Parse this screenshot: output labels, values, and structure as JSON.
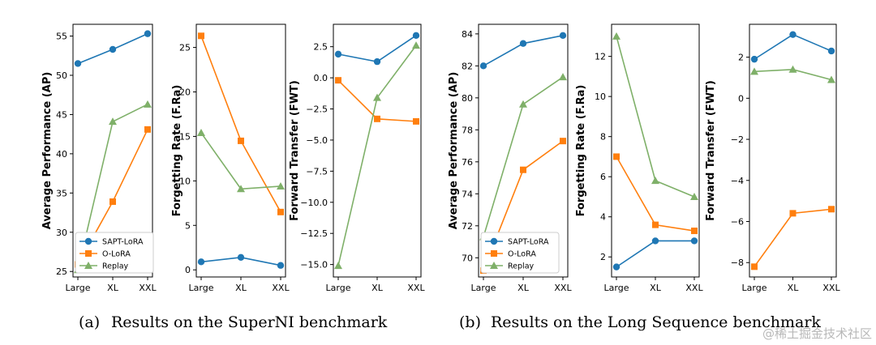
{
  "figure": {
    "captions": [
      {
        "label": "(a)",
        "text": "Results on the SuperNI benchmark"
      },
      {
        "label": "(b)",
        "text": "Results on the Long Sequence benchmark"
      }
    ],
    "watermark": "@稀土掘金技术社区"
  },
  "colors": {
    "SAPT-LoRA": "#1f77b4",
    "O-LoRA": "#ff7f0e",
    "Replay": "#7fb069"
  },
  "chart_data": [
    {
      "type": "line",
      "panel": "a",
      "ylabel": "Average Performance (AP)",
      "categories": [
        "Large",
        "XL",
        "XXL"
      ],
      "ylim": [
        24.3,
        56.5
      ],
      "yticks": [
        25,
        30,
        35,
        40,
        45,
        50,
        55
      ],
      "ytick_labels": [
        "25",
        "30",
        "35",
        "40",
        "45",
        "50",
        "55"
      ],
      "series": [
        {
          "name": "SAPT-LoRA",
          "marker": "circle",
          "values": [
            51.5,
            53.3,
            55.3
          ]
        },
        {
          "name": "O-LoRA",
          "marker": "square",
          "values": [
            25.9,
            33.9,
            43.1
          ]
        },
        {
          "name": "Replay",
          "marker": "triangle",
          "values": [
            25.2,
            44.1,
            46.3
          ]
        }
      ],
      "legend": {
        "entries": [
          "SAPT-LoRA",
          "O-LoRA",
          "Replay"
        ],
        "loc": "lower-right"
      }
    },
    {
      "type": "line",
      "panel": "a",
      "ylabel": "Forgetting Rate (F.Ra)",
      "categories": [
        "Large",
        "XL",
        "XXL"
      ],
      "ylim": [
        -0.8,
        27.6
      ],
      "yticks": [
        0,
        5,
        10,
        15,
        20,
        25
      ],
      "ytick_labels": [
        "0",
        "5",
        "10",
        "15",
        "20",
        "25"
      ],
      "series": [
        {
          "name": "SAPT-LoRA",
          "marker": "circle",
          "values": [
            0.9,
            1.4,
            0.5
          ]
        },
        {
          "name": "O-LoRA",
          "marker": "square",
          "values": [
            26.3,
            14.5,
            6.5
          ]
        },
        {
          "name": "Replay",
          "marker": "triangle",
          "values": [
            15.4,
            9.1,
            9.4
          ]
        }
      ]
    },
    {
      "type": "line",
      "panel": "a",
      "ylabel": "Forward Transfer (FWT)",
      "categories": [
        "Large",
        "XL",
        "XXL"
      ],
      "ylim": [
        -16.0,
        4.3
      ],
      "yticks": [
        2.5,
        0,
        -2.5,
        -5,
        -7.5,
        -10,
        -12.5,
        -15
      ],
      "ytick_labels": [
        "2.5",
        "0.0",
        "−2.5",
        "−5.0",
        "−7.5",
        "−10.0",
        "−12.5",
        "−15.0"
      ],
      "series": [
        {
          "name": "SAPT-LoRA",
          "marker": "circle",
          "values": [
            1.9,
            1.3,
            3.4
          ]
        },
        {
          "name": "O-LoRA",
          "marker": "square",
          "values": [
            -0.2,
            -3.3,
            -3.5
          ]
        },
        {
          "name": "Replay",
          "marker": "triangle",
          "values": [
            -15.1,
            -1.6,
            2.6
          ]
        }
      ]
    },
    {
      "type": "line",
      "panel": "b",
      "ylabel": "Average Performance (AP)",
      "categories": [
        "Large",
        "XL",
        "XXL"
      ],
      "ylim": [
        68.8,
        84.6
      ],
      "yticks": [
        70,
        72,
        74,
        76,
        78,
        80,
        82,
        84
      ],
      "ytick_labels": [
        "70",
        "72",
        "74",
        "76",
        "78",
        "80",
        "82",
        "84"
      ],
      "series": [
        {
          "name": "SAPT-LoRA",
          "marker": "circle",
          "values": [
            82.0,
            83.4,
            83.9
          ]
        },
        {
          "name": "O-LoRA",
          "marker": "square",
          "values": [
            69.2,
            75.5,
            77.3
          ]
        },
        {
          "name": "Replay",
          "marker": "triangle",
          "values": [
            71.3,
            79.6,
            81.3
          ]
        }
      ],
      "legend": {
        "entries": [
          "SAPT-LoRA",
          "O-LoRA",
          "Replay"
        ],
        "loc": "lower-right"
      }
    },
    {
      "type": "line",
      "panel": "b",
      "ylabel": "Forgetting Rate (F.Ra)",
      "categories": [
        "Large",
        "XL",
        "XXL"
      ],
      "ylim": [
        1.0,
        13.6
      ],
      "yticks": [
        2,
        4,
        6,
        8,
        10,
        12
      ],
      "ytick_labels": [
        "2",
        "4",
        "6",
        "8",
        "10",
        "12"
      ],
      "series": [
        {
          "name": "SAPT-LoRA",
          "marker": "circle",
          "values": [
            1.5,
            2.8,
            2.8
          ]
        },
        {
          "name": "O-LoRA",
          "marker": "square",
          "values": [
            7.0,
            3.6,
            3.3
          ]
        },
        {
          "name": "Replay",
          "marker": "triangle",
          "values": [
            13.0,
            5.8,
            5.0
          ]
        }
      ]
    },
    {
      "type": "line",
      "panel": "b",
      "ylabel": "Forward Transfer (FWT)",
      "categories": [
        "Large",
        "XL",
        "XXL"
      ],
      "ylim": [
        -8.7,
        3.6
      ],
      "yticks": [
        2,
        0,
        -2,
        -4,
        -6,
        -8
      ],
      "ytick_labels": [
        "2",
        "0",
        "−2",
        "−4",
        "−6",
        "−8"
      ],
      "series": [
        {
          "name": "SAPT-LoRA",
          "marker": "circle",
          "values": [
            1.9,
            3.1,
            2.3
          ]
        },
        {
          "name": "O-LoRA",
          "marker": "square",
          "values": [
            -8.2,
            -5.6,
            -5.4
          ]
        },
        {
          "name": "Replay",
          "marker": "triangle",
          "values": [
            1.3,
            1.4,
            0.9
          ]
        }
      ]
    }
  ]
}
